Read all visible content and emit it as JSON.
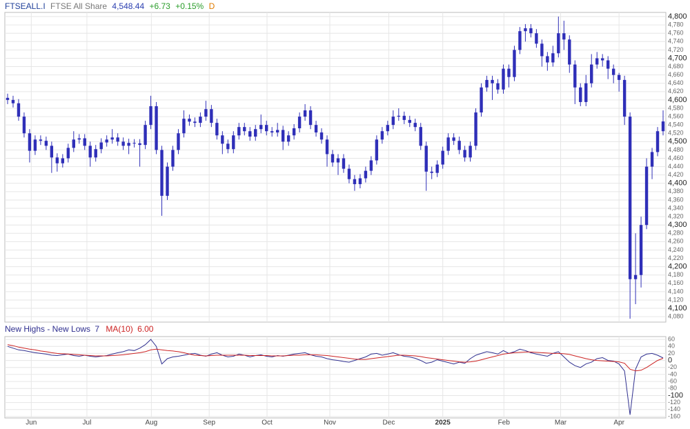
{
  "chart_data": [
    {
      "type": "candlestick",
      "symbol": "FTSEALL.I",
      "name": "FTSE All Share",
      "last": {
        "value": 4548.44,
        "label": "4,548.44"
      },
      "change": {
        "value": 6.73,
        "label": "+6.73"
      },
      "change_pct": {
        "value": 0.15,
        "label": "+0.15%"
      },
      "interval": "D",
      "color": "#2f2fb8",
      "open": [
        4605,
        4600,
        4592,
        4560,
        4520,
        4478,
        4505,
        4502,
        4490,
        4462,
        4448,
        4460,
        4485,
        4505,
        4508,
        4490,
        4462,
        4482,
        4498,
        4505,
        4510,
        4500,
        4490,
        4497,
        4496,
        4492,
        4540,
        4585,
        4480,
        4370,
        4440,
        4480,
        4520,
        4555,
        4548,
        4545,
        4560,
        4578,
        4545,
        4515,
        4495,
        4482,
        4515,
        4535,
        4525,
        4512,
        4530,
        4540,
        4525,
        4522,
        4528,
        4500,
        4515,
        4532,
        4560,
        4575,
        4540,
        4522,
        4505,
        4470,
        4450,
        4460,
        4435,
        4410,
        4398,
        4412,
        4430,
        4455,
        4505,
        4525,
        4540,
        4560,
        4562,
        4552,
        4545,
        4535,
        4490,
        4428,
        4425,
        4445,
        4478,
        4510,
        4502,
        4480,
        4462,
        4490,
        4570,
        4630,
        4648,
        4640,
        4625,
        4675,
        4655,
        4720,
        4765,
        4772,
        4760,
        4735,
        4705,
        4690,
        4712,
        4760,
        4745,
        4685,
        4630,
        4595,
        4640,
        4685,
        4700,
        4695,
        4675,
        4660,
        4648,
        4560,
        4170,
        4180,
        4300,
        4440,
        4475,
        4525
      ],
      "high": [
        4615,
        4610,
        4602,
        4570,
        4530,
        4515,
        4515,
        4512,
        4500,
        4472,
        4470,
        4495,
        4525,
        4518,
        4518,
        4500,
        4492,
        4508,
        4515,
        4530,
        4520,
        4510,
        4507,
        4506,
        4506,
        4550,
        4610,
        4595,
        4490,
        4450,
        4490,
        4530,
        4575,
        4565,
        4558,
        4570,
        4598,
        4588,
        4555,
        4525,
        4505,
        4525,
        4545,
        4545,
        4535,
        4540,
        4565,
        4550,
        4535,
        4545,
        4538,
        4525,
        4542,
        4570,
        4590,
        4585,
        4550,
        4532,
        4515,
        4480,
        4470,
        4470,
        4445,
        4420,
        4422,
        4440,
        4465,
        4515,
        4535,
        4550,
        4575,
        4580,
        4572,
        4562,
        4555,
        4545,
        4500,
        4440,
        4455,
        4488,
        4520,
        4520,
        4512,
        4490,
        4500,
        4580,
        4640,
        4658,
        4658,
        4650,
        4685,
        4685,
        4730,
        4775,
        4782,
        4782,
        4770,
        4745,
        4715,
        4730,
        4800,
        4790,
        4755,
        4695,
        4640,
        4660,
        4710,
        4715,
        4710,
        4705,
        4685,
        4665,
        4658,
        4570,
        4280,
        4320,
        4460,
        4485,
        4535,
        4575
      ],
      "low": [
        4590,
        4582,
        4550,
        4510,
        4450,
        4468,
        4492,
        4480,
        4425,
        4428,
        4438,
        4450,
        4475,
        4495,
        4480,
        4440,
        4452,
        4472,
        4488,
        4495,
        4490,
        4480,
        4470,
        4486,
        4440,
        4482,
        4530,
        4470,
        4322,
        4360,
        4430,
        4470,
        4510,
        4538,
        4535,
        4535,
        4550,
        4535,
        4505,
        4470,
        4472,
        4472,
        4505,
        4515,
        4502,
        4502,
        4520,
        4515,
        4512,
        4512,
        4480,
        4490,
        4505,
        4522,
        4550,
        4530,
        4512,
        4495,
        4440,
        4440,
        4420,
        4425,
        4400,
        4382,
        4388,
        4402,
        4420,
        4445,
        4495,
        4515,
        4530,
        4550,
        4542,
        4535,
        4525,
        4480,
        4382,
        4410,
        4415,
        4435,
        4468,
        4492,
        4470,
        4452,
        4452,
        4480,
        4560,
        4620,
        4600,
        4615,
        4615,
        4630,
        4645,
        4710,
        4740,
        4750,
        4725,
        4680,
        4670,
        4680,
        4702,
        4720,
        4665,
        4590,
        4585,
        4585,
        4630,
        4675,
        4680,
        4650,
        4640,
        4620,
        4540,
        4075,
        4110,
        4150,
        4290,
        4410,
        4465,
        4515
      ],
      "close": [
        4600,
        4592,
        4560,
        4520,
        4478,
        4505,
        4502,
        4490,
        4462,
        4448,
        4460,
        4485,
        4505,
        4508,
        4490,
        4462,
        4482,
        4498,
        4505,
        4510,
        4500,
        4490,
        4497,
        4496,
        4492,
        4540,
        4585,
        4480,
        4370,
        4440,
        4480,
        4520,
        4555,
        4548,
        4545,
        4560,
        4578,
        4545,
        4515,
        4495,
        4482,
        4515,
        4535,
        4525,
        4512,
        4530,
        4540,
        4525,
        4522,
        4528,
        4500,
        4515,
        4532,
        4560,
        4575,
        4540,
        4522,
        4505,
        4470,
        4450,
        4460,
        4435,
        4410,
        4398,
        4412,
        4430,
        4455,
        4505,
        4525,
        4540,
        4560,
        4562,
        4552,
        4545,
        4535,
        4490,
        4428,
        4425,
        4445,
        4478,
        4510,
        4502,
        4480,
        4462,
        4490,
        4570,
        4630,
        4648,
        4640,
        4625,
        4675,
        4655,
        4720,
        4765,
        4772,
        4760,
        4735,
        4705,
        4690,
        4712,
        4760,
        4745,
        4685,
        4630,
        4595,
        4640,
        4685,
        4700,
        4695,
        4675,
        4660,
        4648,
        4560,
        4170,
        4180,
        4300,
        4440,
        4475,
        4525,
        4548.44
      ],
      "ylim": [
        4067,
        4810
      ],
      "yticks": [
        {
          "value": 4080,
          "label": "4,080"
        },
        {
          "value": 4100,
          "label": "4,100"
        },
        {
          "value": 4120,
          "label": "4,120"
        },
        {
          "value": 4140,
          "label": "4,140"
        },
        {
          "value": 4160,
          "label": "4,160"
        },
        {
          "value": 4180,
          "label": "4,180"
        },
        {
          "value": 4200,
          "label": "4,200"
        },
        {
          "value": 4220,
          "label": "4,220"
        },
        {
          "value": 4240,
          "label": "4,240"
        },
        {
          "value": 4260,
          "label": "4,260"
        },
        {
          "value": 4280,
          "label": "4,280"
        },
        {
          "value": 4300,
          "label": "4,300"
        },
        {
          "value": 4320,
          "label": "4,320"
        },
        {
          "value": 4340,
          "label": "4,340"
        },
        {
          "value": 4360,
          "label": "4,360"
        },
        {
          "value": 4380,
          "label": "4,380"
        },
        {
          "value": 4400,
          "label": "4,400"
        },
        {
          "value": 4420,
          "label": "4,420"
        },
        {
          "value": 4440,
          "label": "4,440"
        },
        {
          "value": 4460,
          "label": "4,460"
        },
        {
          "value": 4480,
          "label": "4,480"
        },
        {
          "value": 4500,
          "label": "4,500"
        },
        {
          "value": 4520,
          "label": "4,520"
        },
        {
          "value": 4540,
          "label": "4,540"
        },
        {
          "value": 4560,
          "label": "4,560"
        },
        {
          "value": 4580,
          "label": "4,580"
        },
        {
          "value": 4600,
          "label": "4,600"
        },
        {
          "value": 4620,
          "label": "4,620"
        },
        {
          "value": 4640,
          "label": "4,640"
        },
        {
          "value": 4660,
          "label": "4,660"
        },
        {
          "value": 4680,
          "label": "4,680"
        },
        {
          "value": 4700,
          "label": "4,700"
        },
        {
          "value": 4720,
          "label": "4,720"
        },
        {
          "value": 4740,
          "label": "4,740"
        },
        {
          "value": 4760,
          "label": "4,760"
        },
        {
          "value": 4780,
          "label": "4,780"
        },
        {
          "value": 4800,
          "label": "4,800"
        }
      ],
      "grid": true
    },
    {
      "type": "line",
      "title": "New Highs - New Lows",
      "series": [
        {
          "name": "New Highs - New Lows",
          "color": "#2f2f8f",
          "values": [
            40,
            35,
            30,
            28,
            25,
            22,
            20,
            18,
            15,
            14,
            16,
            18,
            14,
            12,
            15,
            12,
            10,
            12,
            14,
            18,
            22,
            25,
            30,
            28,
            35,
            45,
            60,
            40,
            -10,
            5,
            10,
            12,
            15,
            18,
            20,
            15,
            12,
            18,
            22,
            15,
            10,
            12,
            18,
            15,
            10,
            14,
            16,
            12,
            10,
            14,
            12,
            15,
            18,
            20,
            22,
            16,
            12,
            10,
            5,
            2,
            0,
            -3,
            -5,
            0,
            5,
            10,
            18,
            20,
            15,
            18,
            22,
            16,
            12,
            10,
            6,
            0,
            -8,
            -5,
            2,
            -2,
            -6,
            -10,
            -5,
            -8,
            5,
            15,
            20,
            25,
            22,
            18,
            28,
            20,
            25,
            32,
            28,
            22,
            18,
            15,
            12,
            20,
            25,
            10,
            -5,
            -15,
            -20,
            -10,
            -5,
            5,
            8,
            0,
            -2,
            -10,
            -30,
            -155,
            -25,
            10,
            18,
            20,
            15,
            7
          ]
        },
        {
          "name": "MA(10)",
          "color": "#cc2222",
          "values": [
            45,
            42,
            38,
            35,
            32,
            30,
            27,
            25,
            22,
            20,
            19,
            18,
            17,
            16,
            15,
            14,
            13,
            13,
            13,
            14,
            15,
            16,
            18,
            20,
            22,
            25,
            30,
            32,
            30,
            28,
            27,
            25,
            22,
            18,
            15,
            14,
            13,
            14,
            15,
            15,
            15,
            15,
            15,
            15,
            14,
            14,
            14,
            14,
            13,
            13,
            13,
            14,
            15,
            15,
            16,
            16,
            16,
            15,
            14,
            12,
            10,
            8,
            6,
            4,
            3,
            3,
            5,
            7,
            9,
            11,
            13,
            15,
            15,
            14,
            13,
            11,
            8,
            6,
            4,
            2,
            0,
            -2,
            -4,
            -5,
            -4,
            -2,
            2,
            6,
            10,
            14,
            18,
            20,
            22,
            23,
            24,
            24,
            23,
            22,
            21,
            20,
            20,
            19,
            17,
            13,
            9,
            5,
            2,
            0,
            -1,
            -2,
            -3,
            -4,
            -8,
            -25,
            -30,
            -28,
            -20,
            -10,
            0,
            6
          ],
          "value_labels": {
            "119": "6.00"
          }
        }
      ],
      "ylim": [
        -164,
        68
      ],
      "yticks": [
        60,
        40,
        20,
        0,
        -20,
        -40,
        -60,
        -80,
        -100,
        -120,
        -140,
        -160
      ],
      "xticks": [
        {
          "value": 4.3,
          "label": "Jun"
        },
        {
          "value": 14.4,
          "label": "Jul"
        },
        {
          "value": 26.1,
          "label": "Aug"
        },
        {
          "value": 36.6,
          "label": "Sep"
        },
        {
          "value": 47.1,
          "label": "Oct"
        },
        {
          "value": 58.5,
          "label": "Nov"
        },
        {
          "value": 69.2,
          "label": "Dec"
        },
        {
          "value": 79.0,
          "label": "2025"
        },
        {
          "value": 90.1,
          "label": "Feb"
        },
        {
          "value": 100.4,
          "label": "Mar"
        },
        {
          "value": 111.0,
          "label": "Apr"
        }
      ],
      "grid": true
    }
  ]
}
